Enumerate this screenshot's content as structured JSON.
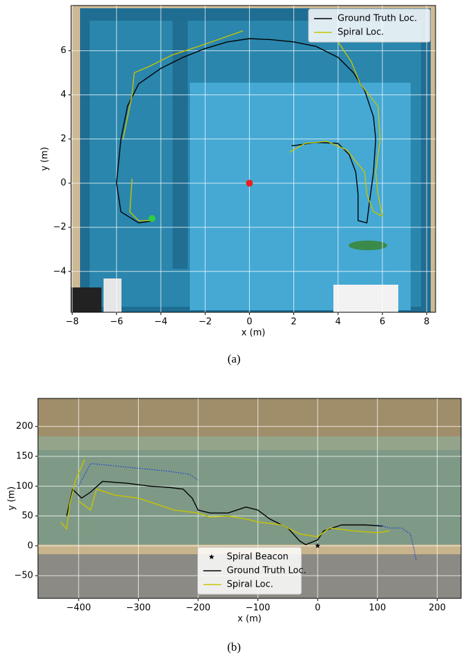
{
  "chart_data": [
    {
      "type": "line",
      "caption": "(a)",
      "xlabel": "x (m)",
      "ylabel": "y (m)",
      "xlim": [
        -8.05,
        8.4
      ],
      "ylim": [
        -5.85,
        8.05
      ],
      "xticks": [
        {
          "value": -8,
          "label": "−8"
        },
        {
          "value": -6,
          "label": "−6"
        },
        {
          "value": -4,
          "label": "−4"
        },
        {
          "value": -2,
          "label": "−2"
        },
        0,
        2,
        4,
        6,
        8
      ],
      "yticks": [
        {
          "value": -4,
          "label": "−4"
        },
        {
          "value": -2,
          "label": "−2"
        },
        0,
        2,
        4,
        6
      ],
      "grid": true,
      "legend_loc": "upper right",
      "series": [
        {
          "name": "Ground Truth Loc.",
          "color": "#000000",
          "x": [
            -4.3,
            -5,
            -5.8,
            -6,
            -5.8,
            -5.5,
            -5,
            -4,
            -3,
            -2,
            -1,
            0,
            1,
            2,
            3,
            4,
            4.7,
            5.2,
            5.6,
            5.7,
            5.6,
            5.4,
            5.3,
            4.9,
            4.9,
            4.8,
            4.5,
            4,
            3,
            2,
            1.9
          ],
          "y": [
            -1.7,
            -1.8,
            -1.3,
            0,
            2,
            3.5,
            4.5,
            5.2,
            5.7,
            6.1,
            6.4,
            6.55,
            6.5,
            6.4,
            6.2,
            5.7,
            5,
            4.2,
            3,
            2,
            0.5,
            -1,
            -1.8,
            -1.7,
            -0.5,
            0.5,
            1.3,
            1.8,
            1.85,
            1.7,
            1.7
          ]
        },
        {
          "name": "Spiral Loc.",
          "color": "#c8c400",
          "x": [
            -5.3,
            -5.4,
            -5,
            -4.5,
            null,
            -5.7,
            -5.5,
            -5.3,
            -5.2,
            -4.5,
            -3.5,
            -2,
            -0.3,
            null,
            4,
            4.6,
            5,
            5.4,
            5.8,
            5.9,
            5.7,
            5.8,
            6,
            5.6,
            5.3,
            5.2,
            4.8,
            4.4,
            3.5,
            2.5,
            1.8
          ],
          "y": [
            0.2,
            -1.3,
            -1.7,
            -1.7,
            null,
            2,
            3,
            4,
            5,
            5.3,
            5.8,
            6.3,
            6.9,
            null,
            6.4,
            5.5,
            4.5,
            4,
            3.5,
            2,
            0.5,
            -0.5,
            -1.5,
            -1.3,
            -0.5,
            0.5,
            1,
            1.5,
            1.9,
            1.8,
            1.4
          ]
        },
        {
          "color": "#e8201e",
          "marker": "circle",
          "x": [
            0
          ],
          "y": [
            0
          ]
        },
        {
          "color": "#2ecc40",
          "marker": "circle",
          "x": [
            -4.4
          ],
          "y": [
            -1.6
          ]
        }
      ]
    },
    {
      "type": "line",
      "caption": "(b)",
      "xlabel": "x (m)",
      "ylabel": "y (m)",
      "xlim": [
        -468,
        240
      ],
      "ylim": [
        -88,
        247
      ],
      "xticks": [
        {
          "value": -400,
          "label": "−400"
        },
        {
          "value": -300,
          "label": "−300"
        },
        {
          "value": -200,
          "label": "−200"
        },
        {
          "value": -100,
          "label": "−100"
        },
        0,
        100,
        200
      ],
      "yticks": [
        {
          "value": -50,
          "label": "−50"
        },
        0,
        50,
        100,
        150,
        200
      ],
      "grid": true,
      "legend_loc": "lower center",
      "series": [
        {
          "name": "Spiral Beacon",
          "color": "#000000",
          "marker": "star",
          "x": [
            0
          ],
          "y": [
            0
          ]
        },
        {
          "name": "Ground Truth Loc.",
          "color": "#000000",
          "x": [
            -420,
            -410,
            -395,
            -380,
            -360,
            -320,
            -280,
            -250,
            -225,
            -210,
            -200,
            -180,
            -150,
            -120,
            -100,
            -80,
            -50,
            -30,
            -20,
            0,
            10,
            40,
            80,
            110
          ],
          "y": [
            50,
            95,
            80,
            90,
            108,
            105,
            100,
            98,
            95,
            80,
            60,
            55,
            55,
            65,
            60,
            45,
            30,
            8,
            2,
            10,
            25,
            35,
            35,
            33
          ]
        },
        {
          "name": "Spiral Loc.",
          "color": "#c8c400",
          "x": [
            -430,
            -420,
            -415,
            -405,
            -390,
            null,
            -400,
            -380,
            -370,
            -340,
            -300,
            -270,
            -240,
            -200,
            -180,
            -150,
            -120,
            -100,
            -60,
            -30,
            0,
            20,
            60,
            100,
            120
          ],
          "y": [
            40,
            28,
            70,
            110,
            145,
            null,
            75,
            60,
            95,
            85,
            80,
            70,
            60,
            55,
            48,
            50,
            45,
            40,
            35,
            20,
            15,
            30,
            25,
            22,
            25
          ]
        },
        {
          "color": "#1f3fd0",
          "style": "dotted",
          "x": [
            -400,
            -380,
            -350,
            -300,
            -250,
            -215,
            -200,
            null,
            100,
            120,
            140,
            155,
            160,
            165
          ],
          "y": [
            100,
            138,
            135,
            130,
            125,
            120,
            110,
            null,
            35,
            30,
            30,
            20,
            0,
            -25
          ]
        }
      ]
    }
  ]
}
